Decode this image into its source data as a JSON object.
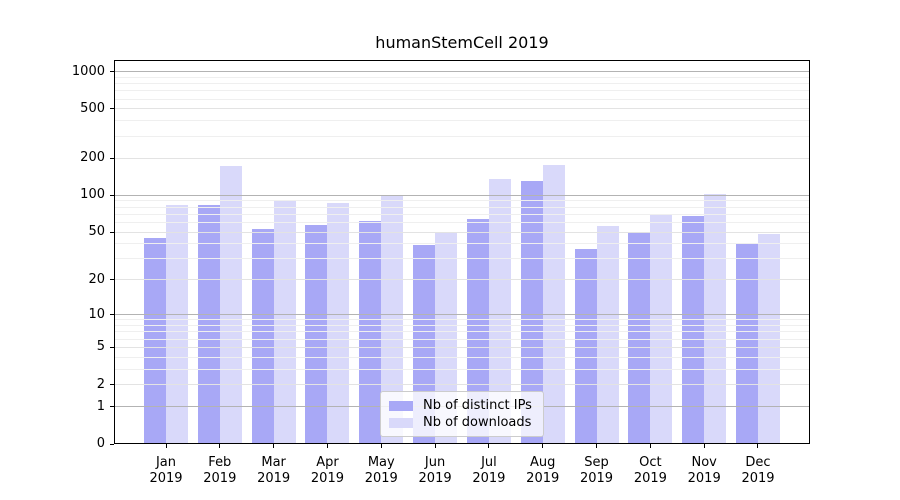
{
  "chart_data": {
    "type": "bar",
    "title": "humanStemCell 2019",
    "xlabel": "",
    "ylabel": "",
    "categories": [
      "Jan 2019",
      "Feb 2019",
      "Mar 2019",
      "Apr 2019",
      "May 2019",
      "Jun 2019",
      "Jul 2019",
      "Aug 2019",
      "Sep 2019",
      "Oct 2019",
      "Nov 2019",
      "Dec 2019"
    ],
    "x_tick_month": [
      "Jan",
      "Feb",
      "Mar",
      "Apr",
      "May",
      "Jun",
      "Jul",
      "Aug",
      "Sep",
      "Oct",
      "Nov",
      "Dec"
    ],
    "x_tick_year": "2019",
    "series": [
      {
        "name": "Nb of distinct IPs",
        "color": "#a8a8f6",
        "values": [
          45,
          84,
          53,
          57,
          62,
          39,
          64,
          131,
          36,
          50,
          68,
          40
        ]
      },
      {
        "name": "Nb of downloads",
        "color": "#d9d9fa",
        "values": [
          84,
          172,
          90,
          86,
          99,
          49,
          136,
          177,
          56,
          70,
          103,
          48
        ]
      }
    ],
    "y_scale": "log10(value+1)",
    "y_max": 1240,
    "y_axis_ticks": [
      1000,
      500,
      200,
      100,
      50,
      20,
      10,
      5,
      2,
      1,
      0
    ],
    "grid": {
      "on": true,
      "drawn_above_bars": true,
      "major_values": [
        1,
        10,
        100,
        1000
      ],
      "mid_values": [
        2,
        5,
        20,
        50,
        200,
        500
      ],
      "minor_values": [
        3,
        4,
        6,
        7,
        8,
        9,
        30,
        40,
        60,
        70,
        80,
        90,
        300,
        400,
        600,
        700,
        800,
        900
      ],
      "major_color": "#b3b3b3",
      "mid_color": "#e3e3e3",
      "minor_color": "#efefef"
    },
    "legend": {
      "position": "lower center",
      "items": [
        "Nb of distinct IPs",
        "Nb of downloads"
      ]
    }
  }
}
